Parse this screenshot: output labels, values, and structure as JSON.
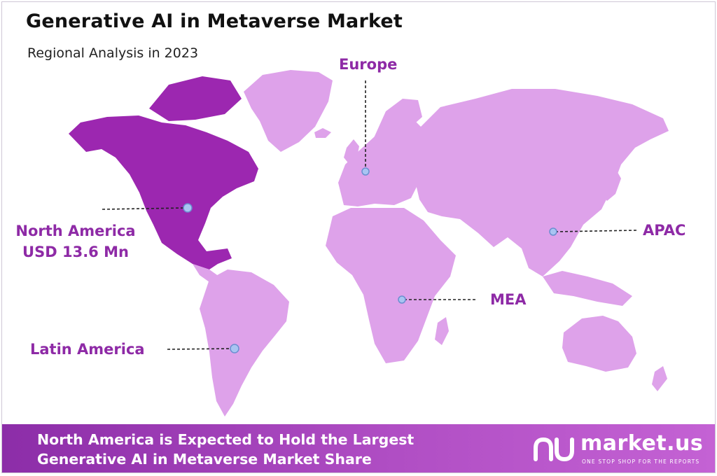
{
  "header": {
    "title": "Generative  AI in Metaverse Market",
    "subtitle": "Regional Analysis in 2023"
  },
  "regions": {
    "europe": {
      "label": "Europe"
    },
    "north_america": {
      "label": "North America",
      "value": "USD 13.6 Mn"
    },
    "latin_america": {
      "label": "Latin America"
    },
    "mea": {
      "label": "MEA"
    },
    "apac": {
      "label": "APAC"
    }
  },
  "footer": {
    "line1": "North America is Expected to Hold the Largest",
    "line2": "Generative AI in Metaverse Market Share"
  },
  "brand": {
    "name": "market.us",
    "tagline": "ONE STOP SHOP FOR THE REPORTS"
  },
  "colors": {
    "highlight_region": "#9c27b0",
    "other_regions": "#dea2ea",
    "label_text": "#8e2aa6",
    "marker": "#a9c4f2",
    "footer_bg": "#a23cba"
  }
}
